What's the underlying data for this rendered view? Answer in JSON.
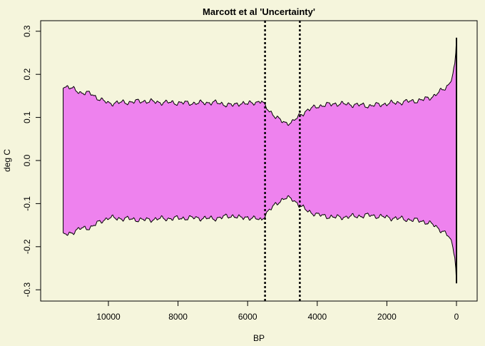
{
  "chart_data": {
    "type": "area",
    "title": "Marcott et al 'Uncertainty'",
    "xlabel": "BP",
    "ylabel": "deg C",
    "xlim": [
      11300,
      0
    ],
    "ylim": [
      -0.3,
      0.3
    ],
    "x_reversed": true,
    "x_ticks": [
      10000,
      8000,
      6000,
      4000,
      2000,
      0
    ],
    "y_ticks": [
      -0.3,
      -0.2,
      -0.1,
      0.0,
      0.1,
      0.2,
      0.3
    ],
    "x_tick_labels": [
      "10000",
      "8000",
      "6000",
      "4000",
      "2000",
      "0"
    ],
    "y_tick_labels": [
      "-0.3",
      "-0.2",
      "-0.1",
      "0.0",
      "0.1",
      "0.2",
      "0.3"
    ],
    "grid": false,
    "fill_color": "#ee82ee",
    "line_color": "#000000",
    "band_symmetric": true,
    "band_x": [
      11300,
      11200,
      11000,
      10800,
      10500,
      10200,
      10000,
      9500,
      9000,
      8500,
      8000,
      7500,
      7000,
      6600,
      6400,
      6200,
      6000,
      5800,
      5600,
      5500,
      5300,
      5100,
      5000,
      4900,
      4700,
      4600,
      4500,
      4300,
      4000,
      3500,
      3000,
      2500,
      2000,
      1500,
      1000,
      700,
      500,
      300,
      200,
      100,
      50,
      20,
      0
    ],
    "band_upper": [
      0.168,
      0.172,
      0.165,
      0.158,
      0.155,
      0.14,
      0.133,
      0.135,
      0.138,
      0.135,
      0.134,
      0.133,
      0.135,
      0.13,
      0.128,
      0.134,
      0.131,
      0.135,
      0.138,
      0.125,
      0.11,
      0.095,
      0.09,
      0.087,
      0.09,
      0.097,
      0.105,
      0.116,
      0.126,
      0.132,
      0.13,
      0.127,
      0.132,
      0.136,
      0.14,
      0.148,
      0.158,
      0.17,
      0.18,
      0.2,
      0.225,
      0.25,
      0.285
    ],
    "vlines": [
      5500,
      4500
    ],
    "vline_style": "dotted"
  }
}
